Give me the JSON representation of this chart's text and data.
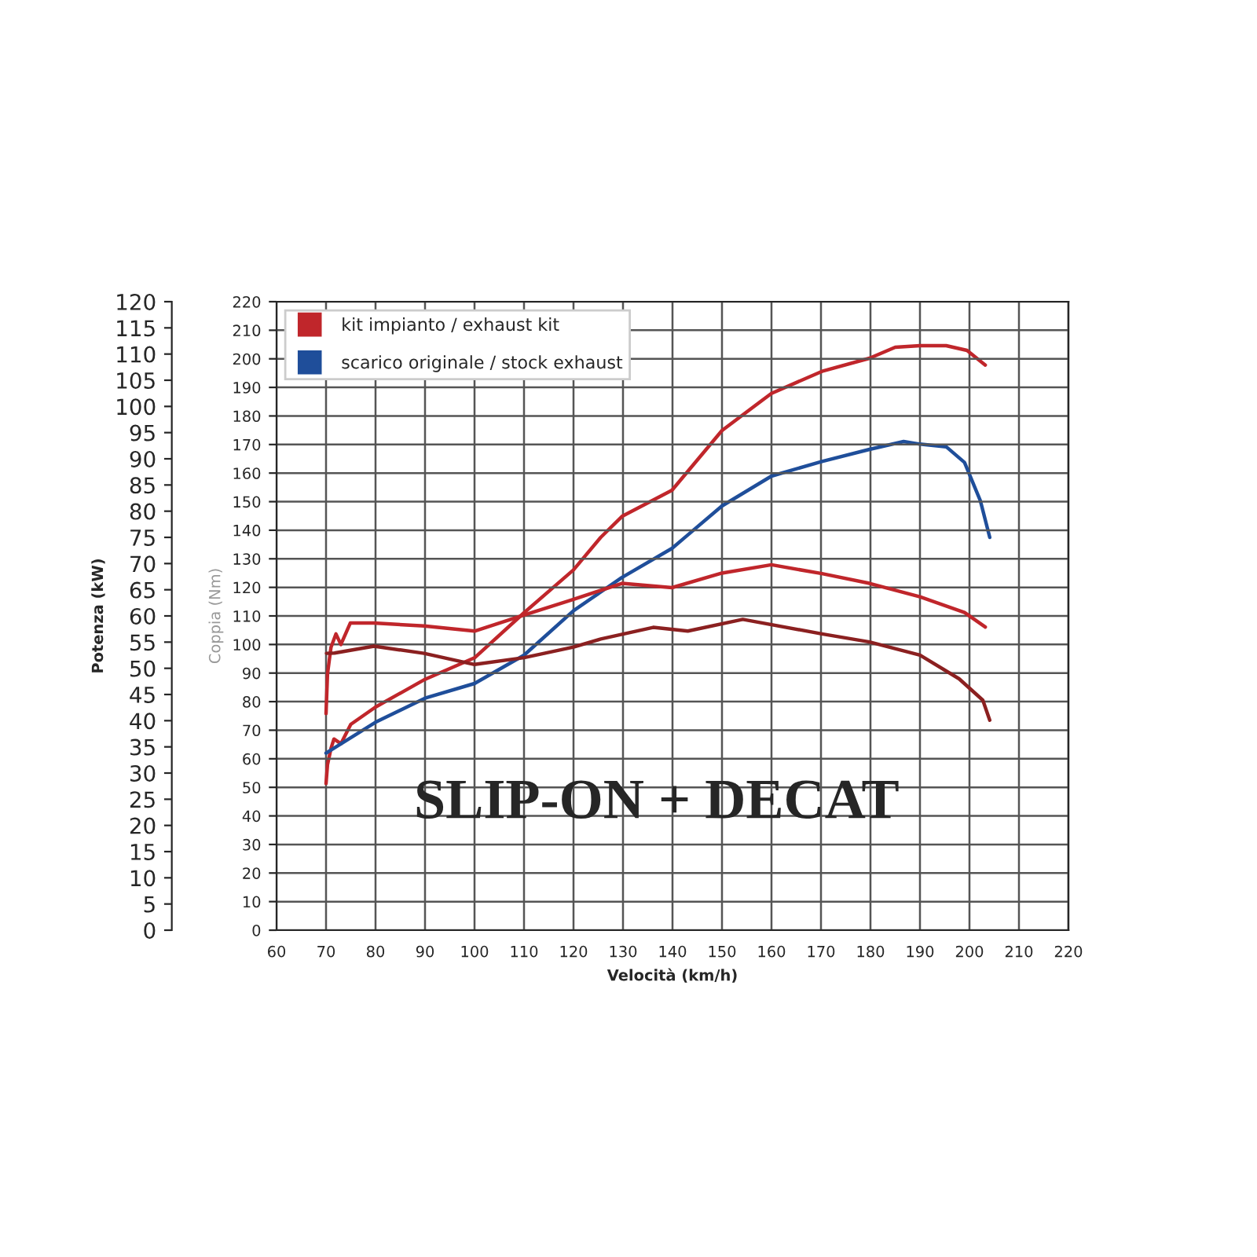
{
  "chart_data": {
    "type": "line",
    "xlabel": "Velocità (km/h)",
    "ylabel": "Potenza (kW)",
    "y2label": "Coppia (Nm)",
    "xlim": [
      60,
      220
    ],
    "xticks": [
      60,
      70,
      80,
      90,
      100,
      110,
      120,
      130,
      140,
      150,
      160,
      170,
      180,
      190,
      200,
      210,
      220
    ],
    "ylim": [
      0,
      120
    ],
    "yticks": [
      0,
      5,
      10,
      15,
      20,
      25,
      30,
      35,
      40,
      45,
      50,
      55,
      60,
      65,
      70,
      75,
      80,
      85,
      90,
      95,
      100,
      105,
      110,
      115,
      120
    ],
    "y2lim": [
      0,
      220
    ],
    "y2ticks": [
      0,
      10,
      20,
      30,
      40,
      50,
      60,
      70,
      80,
      90,
      100,
      110,
      120,
      130,
      140,
      150,
      160,
      170,
      180,
      190,
      200,
      210,
      220
    ],
    "grid": true,
    "legend": "top left",
    "line_style": "solid",
    "marker": "none",
    "annotations": [
      "SLIP-ON + DECAT"
    ],
    "series": [
      {
        "name": "kit impianto / exhaust kit",
        "color": "#c0262b",
        "x": [
          70,
          70.3,
          71,
          71.6,
          73,
          75,
          80,
          90,
          100,
          110,
          120,
          125.5,
          129.8,
          139.9,
          150,
          160,
          170.2,
          179.8,
          185,
          190,
          195.3,
          199.5,
          203.2
        ],
        "values": [
          28,
          31.6,
          34.7,
          36.5,
          35.6,
          39.3,
          42.6,
          47.9,
          52,
          60.6,
          68.8,
          75,
          79,
          84,
          95.4,
          102.5,
          106.7,
          109.2,
          111.3,
          111.6,
          111.6,
          110.7,
          107.9
        ]
      },
      {
        "color": "#c0262b",
        "axis": "y2",
        "x": [
          70,
          70.3,
          71,
          72,
          73,
          74.9,
          79.6,
          89.8,
          100,
          110,
          120,
          129.8,
          139.9,
          150,
          160,
          170.2,
          179.8,
          190,
          199,
          203.2
        ],
        "values": [
          75.8,
          89.8,
          99,
          103.7,
          100,
          107.5,
          107.5,
          106.5,
          104.7,
          110.3,
          115.8,
          121.4,
          119.9,
          125,
          127.9,
          124.8,
          121.4,
          116.7,
          111.2,
          106.1
        ]
      },
      {
        "name": "scarico originale / stock exhaust",
        "color": "#1f4e9a",
        "x": [
          70,
          80,
          90,
          100,
          110,
          120,
          129.7,
          139.9,
          142.4,
          150,
          160,
          170.2,
          179.8,
          186.7,
          190,
          195.3,
          199,
          202.2,
          204.1
        ],
        "values": [
          33.8,
          39.7,
          44.3,
          47.1,
          52.5,
          61,
          67.3,
          72.9,
          74.9,
          81,
          86.7,
          89.5,
          91.8,
          93.3,
          92.8,
          92.3,
          89.3,
          82,
          75
        ]
      },
      {
        "color": "#8b2020",
        "axis": "y2",
        "x": [
          70.1,
          71.7,
          79.7,
          89.8,
          100,
          110,
          120,
          125.5,
          136.1,
          143.1,
          154.2,
          170.2,
          179.8,
          190,
          197.9,
          202.7,
          204.1
        ],
        "values": [
          96.9,
          97,
          99.4,
          96.9,
          93,
          95.4,
          99.1,
          101.9,
          106,
          104.7,
          108.8,
          103.7,
          100.9,
          96.3,
          88,
          80.5,
          73.5
        ]
      }
    ]
  }
}
